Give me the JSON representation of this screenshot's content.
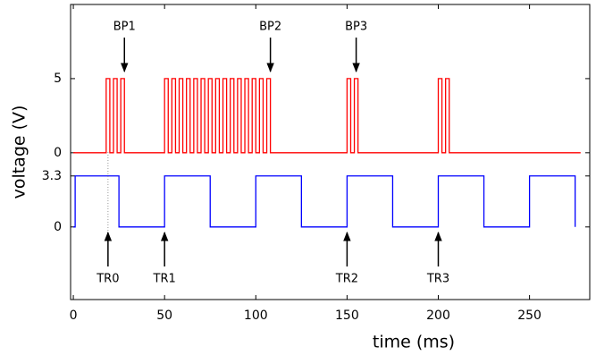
{
  "chart_data": {
    "type": "line",
    "xlabel": "time (ms)",
    "ylabel": "voltage (V)",
    "xlim": [
      -1.5,
      283
    ],
    "xticks": [
      0,
      50,
      100,
      150,
      200,
      250
    ],
    "ylim": [
      -9.9,
      10
    ],
    "yticks": [
      0,
      5
    ],
    "y2lim": [
      -4.7,
      14.4
    ],
    "y2ticks": [
      0,
      3.3
    ],
    "series": [
      {
        "color": "#ff0000",
        "x": [
          0,
          18,
          18,
          20,
          20,
          22,
          22,
          24,
          24,
          26,
          26,
          28,
          28,
          50,
          50,
          52,
          52,
          54,
          54,
          56,
          56,
          58,
          58,
          60,
          60,
          62,
          62,
          64,
          64,
          66,
          66,
          68,
          68,
          70,
          70,
          72,
          72,
          74,
          74,
          76,
          76,
          78,
          78,
          80,
          80,
          82,
          82,
          84,
          84,
          86,
          86,
          88,
          88,
          90,
          90,
          92,
          92,
          94,
          94,
          96,
          96,
          98,
          98,
          100,
          100,
          102,
          102,
          104,
          104,
          106,
          106,
          108,
          108,
          150,
          150,
          152,
          152,
          154,
          154,
          156,
          156,
          200,
          200,
          202,
          202,
          204,
          204,
          206,
          206,
          278
        ],
        "values": [
          0,
          0,
          5,
          5,
          0,
          0,
          5,
          5,
          0,
          0,
          5,
          5,
          0,
          0,
          5,
          5,
          0,
          0,
          5,
          5,
          0,
          0,
          5,
          5,
          0,
          0,
          5,
          5,
          0,
          0,
          5,
          5,
          0,
          0,
          5,
          5,
          0,
          0,
          5,
          5,
          0,
          0,
          5,
          5,
          0,
          0,
          5,
          5,
          0,
          0,
          5,
          5,
          0,
          0,
          5,
          5,
          0,
          0,
          5,
          5,
          0,
          0,
          5,
          5,
          0,
          0,
          5,
          5,
          0,
          0,
          5,
          5,
          0,
          0,
          5,
          5,
          0,
          0,
          5,
          5,
          0,
          0,
          5,
          5,
          0,
          0,
          5,
          5,
          0,
          0
        ]
      },
      {
        "color": "#0000ff",
        "axis": "y2",
        "x": [
          0,
          1,
          1,
          25,
          25,
          50,
          50,
          75,
          75,
          100,
          100,
          125,
          125,
          150,
          150,
          175,
          175,
          200,
          200,
          225,
          225,
          250,
          250,
          275,
          275
        ],
        "values": [
          0,
          0,
          3.3,
          3.3,
          0,
          0,
          3.3,
          3.3,
          0,
          0,
          3.3,
          3.3,
          0,
          0,
          3.3,
          3.3,
          0,
          0,
          3.3,
          3.3,
          0,
          0,
          3.3,
          3.3,
          0
        ]
      }
    ],
    "annotations": [
      {
        "text": "BP1",
        "x": 28,
        "side": "top"
      },
      {
        "text": "BP2",
        "x": 108,
        "side": "top"
      },
      {
        "text": "BP3",
        "x": 155,
        "side": "top"
      },
      {
        "text": "TR0",
        "x": 19,
        "side": "bottom",
        "dotted": true
      },
      {
        "text": "TR1",
        "x": 50,
        "side": "bottom"
      },
      {
        "text": "TR2",
        "x": 150,
        "side": "bottom"
      },
      {
        "text": "TR3",
        "x": 200,
        "side": "bottom"
      }
    ]
  }
}
